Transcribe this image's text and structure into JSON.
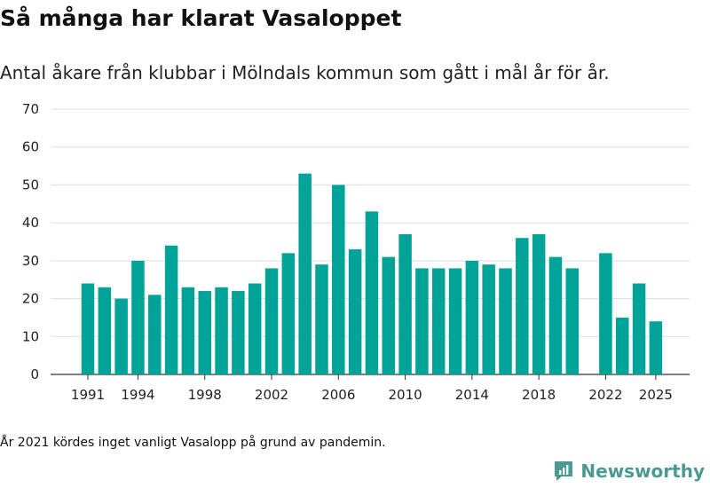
{
  "header": {
    "title": "Så många har klarat Vasaloppet",
    "subtitle": "Antal åkare från klubbar i Mölndals kommun som gått i mål år för år."
  },
  "footer": {
    "note": "År 2021 kördes inget vanligt Vasalopp på grund av pandemin.",
    "brand": "Newsworthy"
  },
  "colors": {
    "bar": "#00a398",
    "grid": "#dddddd",
    "brand": "#4a9a93"
  },
  "chart_data": {
    "type": "bar",
    "title": "Så många har klarat Vasaloppet",
    "subtitle": "Antal åkare från klubbar i Mölndals kommun som gått i mål år för år.",
    "xlabel": "",
    "ylabel": "",
    "ylim": [
      0,
      70
    ],
    "yticks": [
      0,
      10,
      20,
      30,
      40,
      50,
      60,
      70
    ],
    "xticks": [
      "1991",
      "1994",
      "1998",
      "2002",
      "2006",
      "2010",
      "2014",
      "2018",
      "2022",
      "2025"
    ],
    "categories": [
      "1991",
      "1992",
      "1993",
      "1994",
      "1995",
      "1996",
      "1997",
      "1998",
      "1999",
      "2000",
      "2001",
      "2002",
      "2003",
      "2004",
      "2005",
      "2006",
      "2007",
      "2008",
      "2009",
      "2010",
      "2011",
      "2012",
      "2013",
      "2014",
      "2015",
      "2016",
      "2017",
      "2018",
      "2019",
      "2020",
      "2021",
      "2022",
      "2023",
      "2024",
      "2025"
    ],
    "values": [
      24,
      23,
      20,
      30,
      21,
      34,
      23,
      22,
      23,
      22,
      24,
      28,
      32,
      53,
      29,
      50,
      33,
      43,
      31,
      37,
      28,
      28,
      28,
      30,
      29,
      28,
      36,
      37,
      31,
      28,
      null,
      32,
      15,
      24,
      14
    ],
    "grid": true
  }
}
